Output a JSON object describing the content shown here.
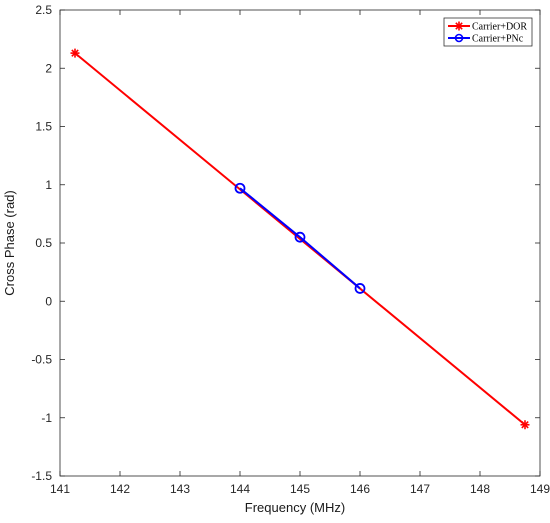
{
  "chart_data": {
    "type": "line",
    "title": "",
    "xlabel": "Frequency (MHz)",
    "ylabel": "Cross Phase (rad)",
    "xlim": [
      141,
      149
    ],
    "ylim": [
      -1.5,
      2.5
    ],
    "xticks": [
      "141",
      "142",
      "143",
      "144",
      "145",
      "146",
      "147",
      "148",
      "149"
    ],
    "yticks": [
      "2.5",
      "2",
      "1.5",
      "1",
      "0.5",
      "0",
      "-0.5",
      "-1",
      "-1.5"
    ],
    "grid": false,
    "legend_position": "top-right",
    "series": [
      {
        "name": "Carrier+DOR",
        "color": "#ff0000",
        "marker": "asterisk",
        "x": [
          141.25,
          148.75
        ],
        "y": [
          2.13,
          -1.06
        ]
      },
      {
        "name": "Carrier+PNc",
        "color": "#0000ff",
        "marker": "circle",
        "x": [
          144,
          145,
          146
        ],
        "y": [
          0.97,
          0.55,
          0.11
        ]
      }
    ]
  }
}
